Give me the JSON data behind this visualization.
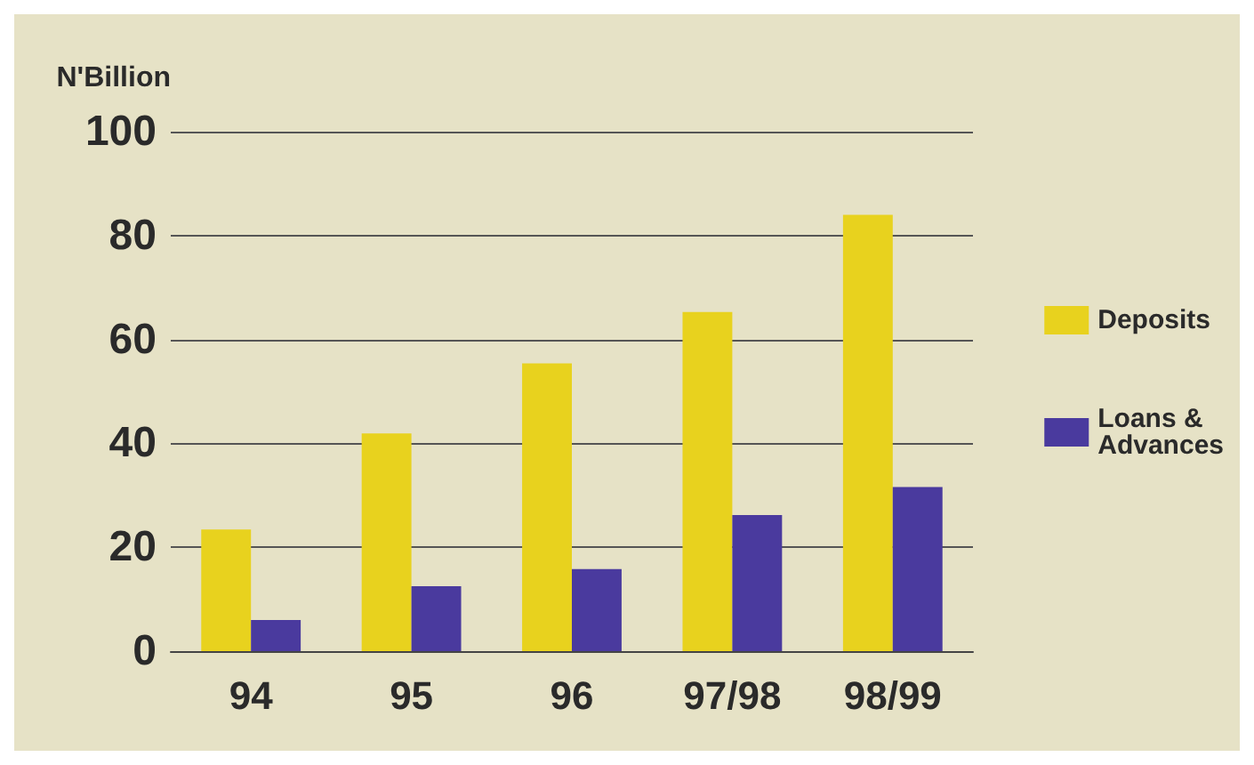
{
  "chart_data": {
    "type": "bar",
    "ylabel": "N'Billion",
    "categories": [
      "94",
      "95",
      "96",
      "97/98",
      "98/99"
    ],
    "series": [
      {
        "name": "Deposits",
        "color": "#e8d21e",
        "values": [
          23.4,
          41.9,
          55.4,
          65.3,
          84
        ]
      },
      {
        "name": "Loans & Advances",
        "color": "#4a3a9e",
        "values": [
          6,
          12.5,
          15.8,
          26.2,
          31.6
        ]
      }
    ],
    "ylim": [
      0,
      100
    ],
    "yticks": [
      0,
      20,
      40,
      60,
      80,
      100
    ],
    "grid": "y",
    "legend": "right"
  }
}
